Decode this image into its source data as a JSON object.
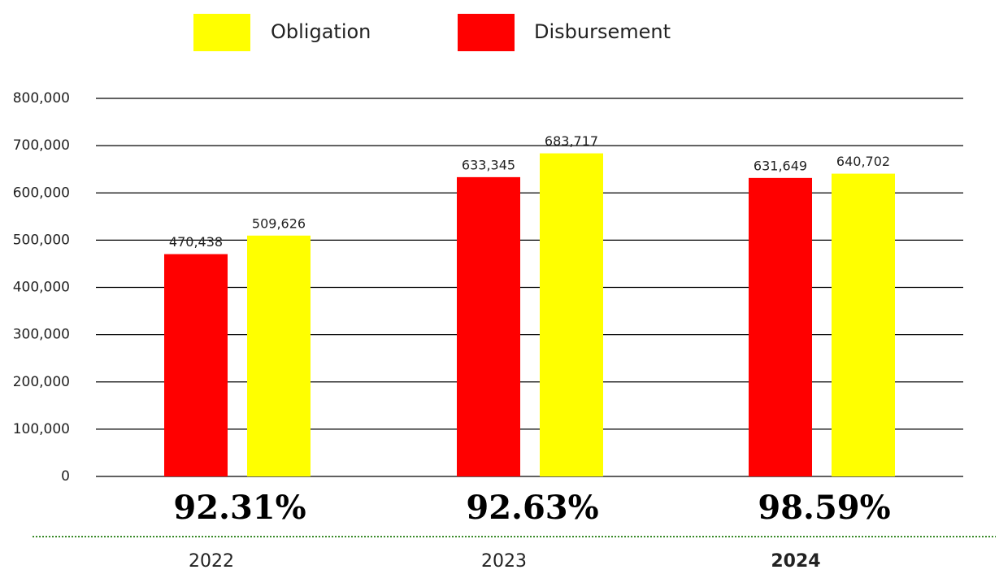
{
  "chart_data": {
    "type": "bar",
    "categories": [
      "2022",
      "2023",
      "2024"
    ],
    "highlight_category": 2,
    "series": [
      {
        "name": "Disbursement",
        "color": "#ff0000",
        "values": [
          470438,
          633345,
          631649
        ],
        "value_labels": [
          "470,438",
          "633,345",
          "631,649"
        ]
      },
      {
        "name": "Obligation",
        "color": "#ffff00",
        "values": [
          509626,
          683717,
          640702
        ],
        "value_labels": [
          "509,626",
          "683,717",
          "640,702"
        ]
      }
    ],
    "annotations": [
      "92.31%",
      "92.63%",
      "98.59%"
    ],
    "ylim": [
      0,
      800000
    ],
    "yticks": [
      0,
      {
        "value": 100000,
        "label": "100,000"
      },
      {
        "value": 200000,
        "label": "200,000"
      },
      {
        "value": 300000,
        "label": "300,000"
      },
      {
        "value": 400000,
        "label": "400,000"
      },
      {
        "value": 500000,
        "label": "500,000"
      },
      {
        "value": 600000,
        "label": "600,000"
      },
      {
        "value": 700000,
        "label": "700,000"
      },
      {
        "value": 800000,
        "label": "800,000"
      }
    ],
    "grid": true
  }
}
